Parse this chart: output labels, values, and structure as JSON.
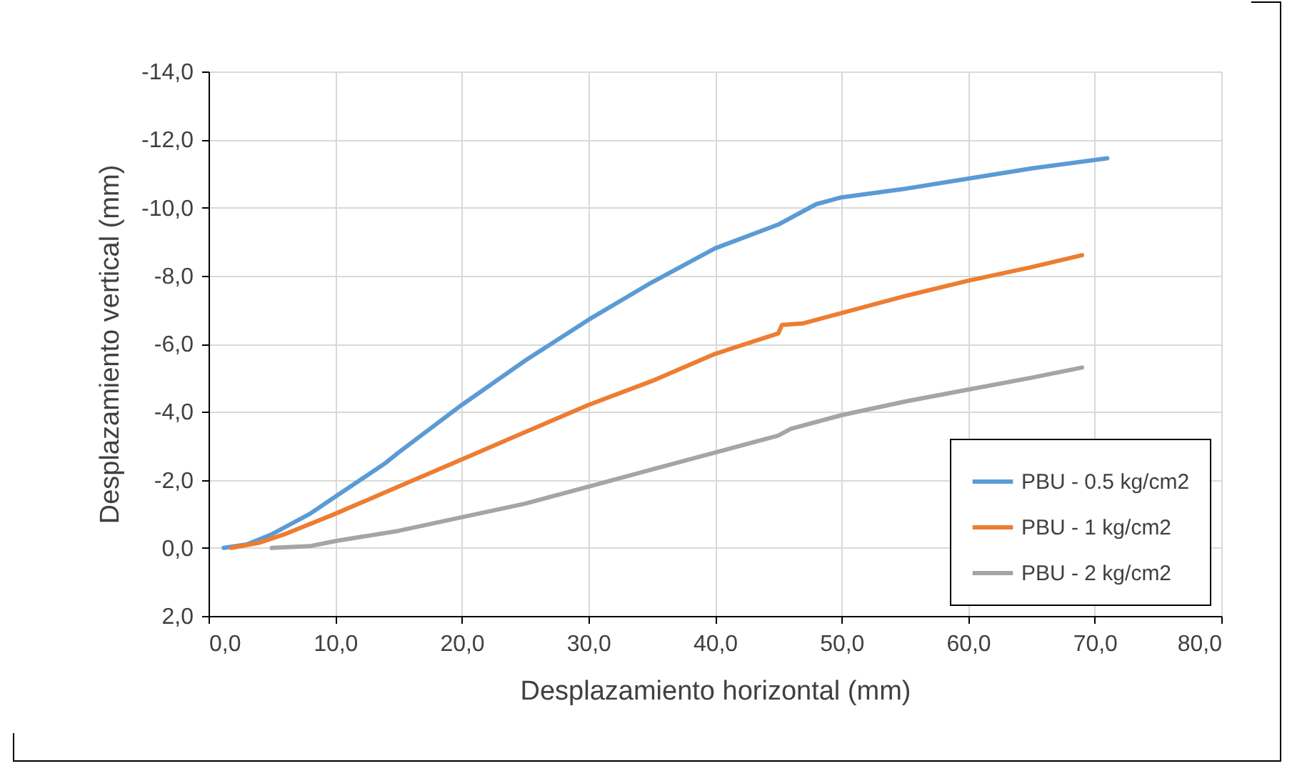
{
  "chart_data": {
    "type": "line",
    "xlabel": "Desplazamiento horizontal (mm)",
    "ylabel": "Desplazamiento vertical (mm)",
    "xlim": [
      0,
      80
    ],
    "xticks": [
      {
        "value": 0,
        "label": "0,0"
      },
      {
        "value": 10,
        "label": "10,0"
      },
      {
        "value": 20,
        "label": "20,0"
      },
      {
        "value": 30,
        "label": "30,0"
      },
      {
        "value": 40,
        "label": "40,0"
      },
      {
        "value": 50,
        "label": "50,0"
      },
      {
        "value": 60,
        "label": "60,0"
      },
      {
        "value": 70,
        "label": "70,0"
      },
      {
        "value": 80,
        "label": "80,0"
      }
    ],
    "ylim": [
      2,
      -14
    ],
    "yticks": [
      {
        "value": 2,
        "label": "2,0"
      },
      {
        "value": 0,
        "label": "0,0"
      },
      {
        "value": -2,
        "label": "-2,0"
      },
      {
        "value": -4,
        "label": "-4,0"
      },
      {
        "value": -6,
        "label": "-6,0"
      },
      {
        "value": -8,
        "label": "-8,0"
      },
      {
        "value": -10,
        "label": "-10,0"
      },
      {
        "value": -12,
        "label": "-12,0"
      },
      {
        "value": -14,
        "label": "-14,0"
      }
    ],
    "grid": true,
    "legend": "bottom right",
    "line_style": "solid",
    "series": [
      {
        "name": "PBU - 0.5 kg/cm2",
        "color": "#5b9bd5",
        "x": [
          1.2,
          3,
          5,
          7,
          8,
          10,
          12,
          14,
          15,
          20,
          25,
          30,
          35,
          40,
          45,
          47,
          48,
          50,
          55,
          60,
          65,
          71
        ],
        "values": [
          0,
          -0.1,
          -0.4,
          -0.8,
          -1.0,
          -1.5,
          -2.0,
          -2.5,
          -2.8,
          -4.2,
          -5.5,
          -6.7,
          -7.8,
          -8.8,
          -9.5,
          -9.9,
          -10.1,
          -10.3,
          -10.55,
          -10.85,
          -11.15,
          -11.45
        ]
      },
      {
        "name": "PBU - 1 kg/cm2",
        "color": "#ed7d31",
        "x": [
          1.8,
          4,
          6,
          10,
          15,
          20,
          25,
          30,
          35,
          40,
          45,
          45.3,
          47,
          50,
          55,
          60,
          65,
          69
        ],
        "values": [
          0,
          -0.15,
          -0.4,
          -1.0,
          -1.8,
          -2.6,
          -3.4,
          -4.2,
          -4.9,
          -5.7,
          -6.3,
          -6.55,
          -6.6,
          -6.9,
          -7.4,
          -7.85,
          -8.25,
          -8.6
        ]
      },
      {
        "name": "PBU - 2 kg/cm2",
        "color": "#a5a5a5",
        "x": [
          5,
          8,
          10,
          15,
          20,
          25,
          30,
          35,
          40,
          45,
          46,
          50,
          55,
          60,
          65,
          69
        ],
        "values": [
          0,
          -0.05,
          -0.2,
          -0.5,
          -0.9,
          -1.3,
          -1.8,
          -2.3,
          -2.8,
          -3.3,
          -3.5,
          -3.9,
          -4.3,
          -4.65,
          -5.0,
          -5.3
        ]
      }
    ]
  }
}
